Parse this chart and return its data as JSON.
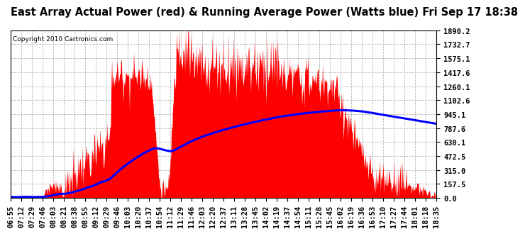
{
  "title": "East Array Actual Power (red) & Running Average Power (Watts blue) Fri Sep 17 18:38",
  "copyright": "Copyright 2010 Cartronics.com",
  "ylim": [
    0.0,
    1890.2
  ],
  "yticks": [
    0.0,
    157.5,
    315.0,
    472.5,
    630.1,
    787.6,
    945.1,
    1102.6,
    1260.1,
    1417.6,
    1575.1,
    1732.7,
    1890.2
  ],
  "ytick_labels": [
    "0.0",
    "157.5",
    "315.0",
    "472.5",
    "630.1",
    "787.6",
    "945.1",
    "1102.6",
    "1260.1",
    "1417.6",
    "1575.1",
    "1732.7",
    "1890.2"
  ],
  "xtick_labels": [
    "06:55",
    "07:12",
    "07:29",
    "07:46",
    "08:03",
    "08:21",
    "08:38",
    "08:55",
    "09:12",
    "09:29",
    "09:46",
    "10:03",
    "10:20",
    "10:37",
    "10:54",
    "11:12",
    "11:29",
    "11:46",
    "12:03",
    "12:20",
    "12:37",
    "13:11",
    "13:28",
    "13:45",
    "14:02",
    "14:19",
    "14:37",
    "14:54",
    "15:11",
    "15:28",
    "15:45",
    "16:02",
    "16:19",
    "16:36",
    "16:53",
    "17:10",
    "17:27",
    "17:44",
    "18:01",
    "18:18",
    "18:35"
  ],
  "background_color": "#ffffff",
  "actual_color": "#ff0000",
  "avg_color": "#0000ff",
  "grid_color": "#b0b0b0",
  "title_fontsize": 10.5,
  "tick_fontsize": 7.5
}
